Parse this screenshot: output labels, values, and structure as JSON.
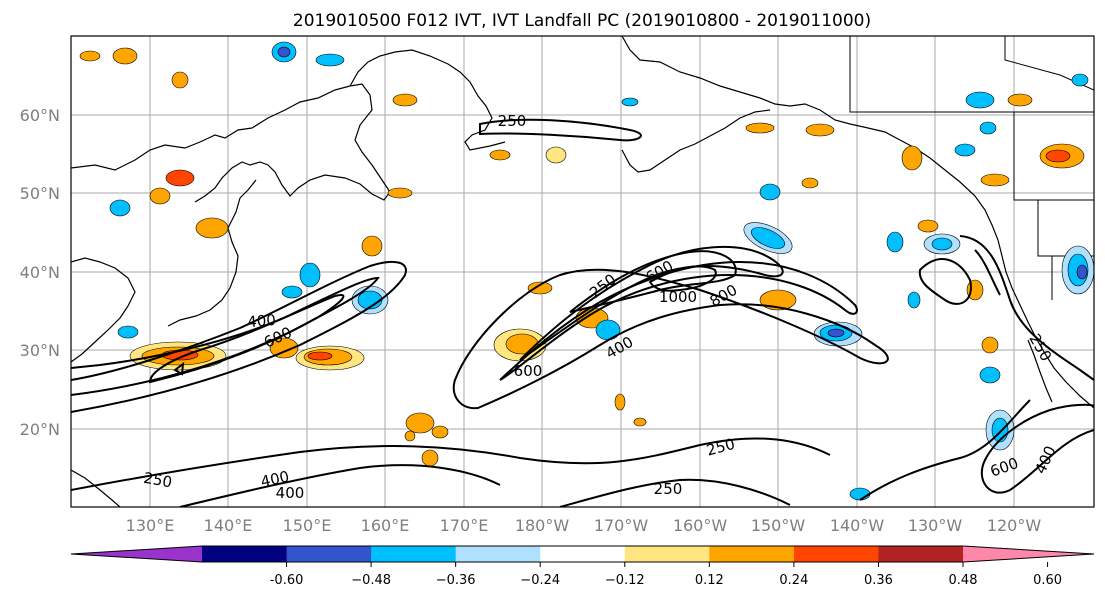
{
  "title": "2019010500 F012 IVT, IVT Landfall PC (2019010800 - 2019011000)",
  "lat_labels": [
    "60°N",
    "50°N",
    "40°N",
    "30°N",
    "20°N"
  ],
  "lon_labels": [
    "130°E",
    "140°E",
    "150°E",
    "160°E",
    "170°E",
    "180°W",
    "170°W",
    "160°W",
    "150°W",
    "140°W",
    "130°W",
    "120°W"
  ],
  "colorbar": {
    "colors": [
      "#9933cc",
      "#000080",
      "#3355cc",
      "#00bfff",
      "#b0e0ff",
      "#ffffff",
      "#ffe680",
      "#ffa500",
      "#ff4500",
      "#b22222",
      "#ff88aa"
    ],
    "ticks": [
      "-0.60",
      "−0.48",
      "−0.36",
      "−0.24",
      "−0.12",
      "0.12",
      "0.24",
      "0.36",
      "0.48",
      "0.60"
    ]
  },
  "contour_labels": [
    "250",
    "250",
    "250",
    "250",
    "250",
    "250",
    "400",
    "400",
    "400",
    "400",
    "400",
    "600",
    "600",
    "600",
    "600",
    "800",
    "1000"
  ]
}
